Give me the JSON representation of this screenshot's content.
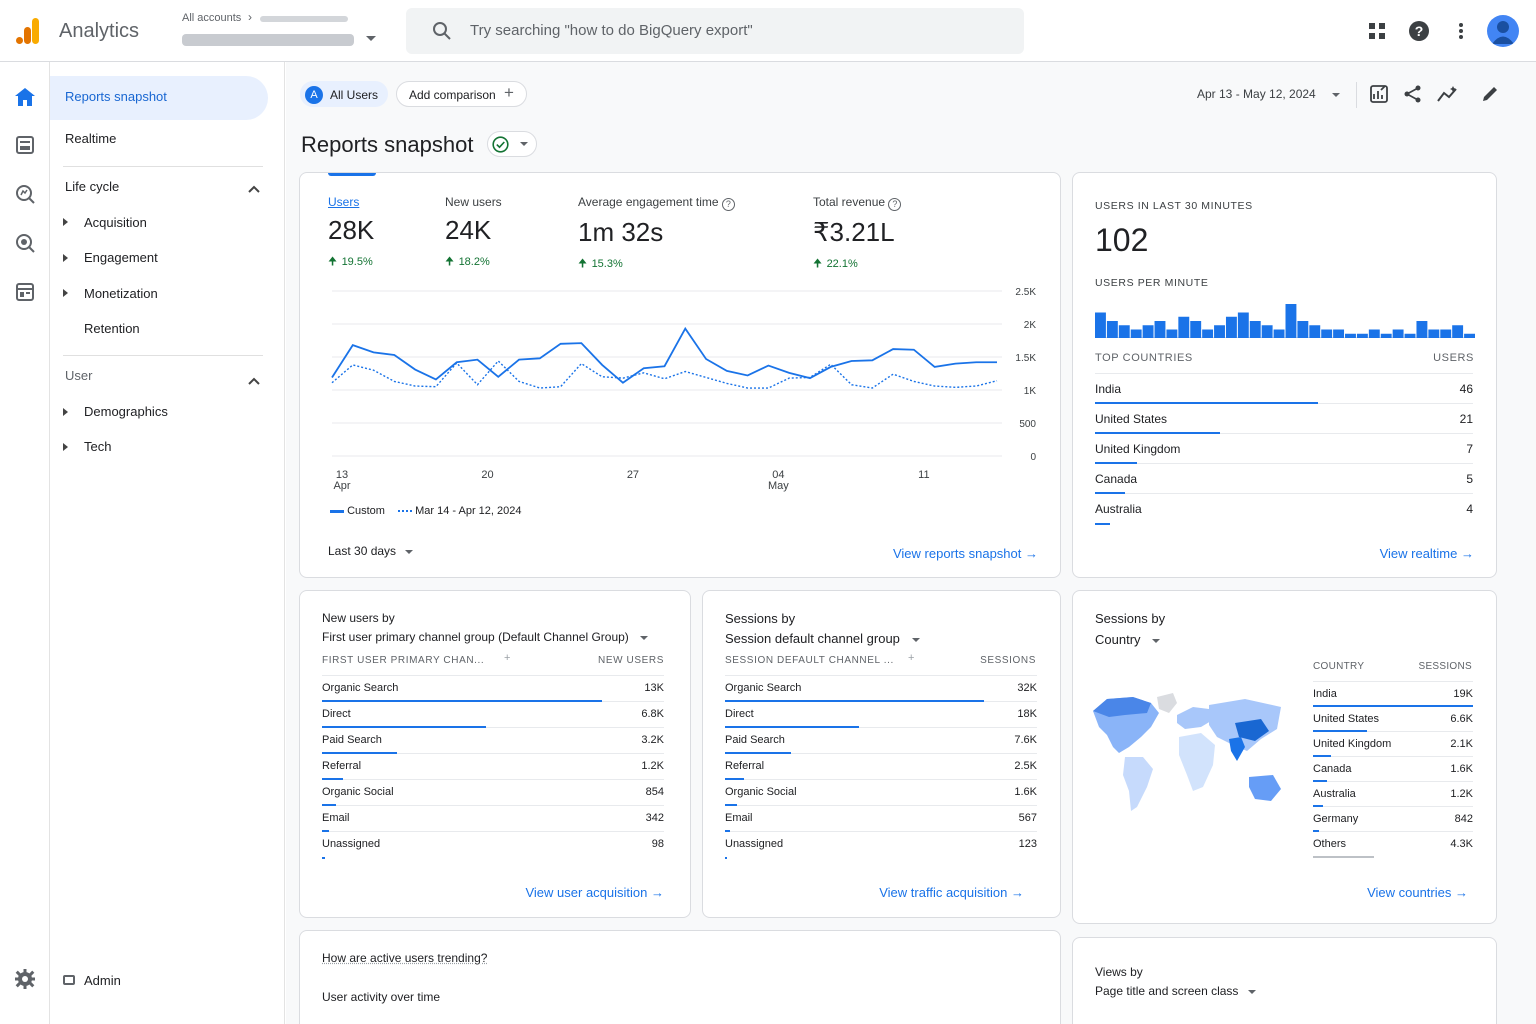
{
  "app": {
    "name": "Analytics",
    "accounts_label": "All accounts"
  },
  "search": {
    "placeholder": "Try searching \"how to do BigQuery export\""
  },
  "sidenav": {
    "reports_snapshot": "Reports snapshot",
    "realtime": "Realtime",
    "lifecycle": "Life cycle",
    "acquisition": "Acquisition",
    "engagement": "Engagement",
    "monetization": "Monetization",
    "retention": "Retention",
    "user": "User",
    "demographics": "Demographics",
    "tech": "Tech",
    "admin": "Admin"
  },
  "toolbar": {
    "all_users_badge": "A",
    "all_users": "All Users",
    "add_comparison": "Add comparison",
    "date_range": "Apr 13 - May 12, 2024"
  },
  "page": {
    "title": "Reports snapshot"
  },
  "overview": {
    "metrics": [
      {
        "label": "Users",
        "value": "28K",
        "change": "19.5%"
      },
      {
        "label": "New users",
        "value": "24K",
        "change": "18.2%"
      },
      {
        "label": "Average engagement time",
        "value": "1m 32s",
        "change": "15.3%"
      },
      {
        "label": "Total revenue",
        "value": "₹3.21L",
        "change": "22.1%"
      }
    ],
    "legend_custom": "Custom",
    "legend_prev": "Mar 14 - Apr 12, 2024",
    "period": "Last 30 days",
    "view_link": "View reports snapshot"
  },
  "chart_data": {
    "type": "line",
    "x_tick_labels": [
      {
        "day": "13",
        "month": "Apr"
      },
      {
        "day": "20",
        "month": ""
      },
      {
        "day": "27",
        "month": ""
      },
      {
        "day": "04",
        "month": "May"
      },
      {
        "day": "11",
        "month": ""
      }
    ],
    "y_ticks": [
      "2.5K",
      "2K",
      "1.5K",
      "1K",
      "500",
      "0"
    ],
    "ylim": [
      0,
      2500
    ],
    "series": [
      {
        "name": "Custom",
        "values": [
          1190,
          1680,
          1570,
          1530,
          1310,
          1160,
          1420,
          1460,
          1200,
          1460,
          1480,
          1700,
          1710,
          1380,
          1110,
          1330,
          1360,
          1930,
          1470,
          1290,
          1220,
          1370,
          1260,
          1180,
          1350,
          1440,
          1450,
          1620,
          1610,
          1350,
          1400,
          1420,
          1420
        ]
      },
      {
        "name": "Mar 14 - Apr 12, 2024",
        "values": [
          1110,
          1380,
          1300,
          1130,
          1060,
          1050,
          1410,
          1080,
          1440,
          1130,
          1030,
          1050,
          1400,
          1200,
          1180,
          1260,
          1170,
          1280,
          1190,
          1100,
          1030,
          1030,
          1180,
          1190,
          1390,
          1080,
          1030,
          1240,
          1130,
          1060,
          1040,
          1060,
          1140
        ]
      }
    ]
  },
  "realtime": {
    "title": "USERS IN LAST 30 MINUTES",
    "value": "102",
    "per_minute_label": "USERS PER MINUTE",
    "per_minute": [
      6,
      4,
      3,
      2,
      3,
      4,
      2,
      5,
      4,
      2,
      3,
      5,
      6,
      4,
      3,
      2,
      8,
      4,
      3,
      2,
      2,
      1,
      1,
      2,
      1,
      2,
      1,
      4,
      2,
      2,
      3,
      1
    ],
    "countries_header": "TOP COUNTRIES",
    "users_header": "USERS",
    "countries": [
      {
        "name": "India",
        "value": "46",
        "pct": 0.59
      },
      {
        "name": "United States",
        "value": "21",
        "pct": 0.33
      },
      {
        "name": "United Kingdom",
        "value": "7",
        "pct": 0.11
      },
      {
        "name": "Canada",
        "value": "5",
        "pct": 0.08
      },
      {
        "name": "Australia",
        "value": "4",
        "pct": 0.04
      }
    ],
    "view_link": "View realtime"
  },
  "new_users": {
    "title": "New users by",
    "selector": "First user primary channel group (Default Channel Group)",
    "col1": "FIRST USER PRIMARY CHAN...",
    "col2": "NEW USERS",
    "rows": [
      {
        "label": "Organic Search",
        "value": "13K",
        "pct": 0.82
      },
      {
        "label": "Direct",
        "value": "6.8K",
        "pct": 0.48
      },
      {
        "label": "Paid Search",
        "value": "3.2K",
        "pct": 0.22
      },
      {
        "label": "Referral",
        "value": "1.2K",
        "pct": 0.06
      },
      {
        "label": "Organic Social",
        "value": "854",
        "pct": 0.04
      },
      {
        "label": "Email",
        "value": "342",
        "pct": 0.02
      },
      {
        "label": "Unassigned",
        "value": "98",
        "pct": 0.01
      }
    ],
    "view_link": "View user acquisition"
  },
  "sessions_channel": {
    "title": "Sessions by",
    "selector": "Session default channel group",
    "col1": "SESSION DEFAULT CHANNEL ...",
    "col2": "SESSIONS",
    "rows": [
      {
        "label": "Organic Search",
        "value": "32K",
        "pct": 0.83
      },
      {
        "label": "Direct",
        "value": "18K",
        "pct": 0.43
      },
      {
        "label": "Paid Search",
        "value": "7.6K",
        "pct": 0.21
      },
      {
        "label": "Referral",
        "value": "2.5K",
        "pct": 0.06
      },
      {
        "label": "Organic Social",
        "value": "1.6K",
        "pct": 0.04
      },
      {
        "label": "Email",
        "value": "567",
        "pct": 0.015
      },
      {
        "label": "Unassigned",
        "value": "123",
        "pct": 0.005
      }
    ],
    "view_link": "View traffic acquisition"
  },
  "sessions_country": {
    "title": "Sessions by",
    "selector": "Country",
    "col1": "COUNTRY",
    "col2": "SESSIONS",
    "rows": [
      {
        "label": "India",
        "value": "19K",
        "pct": 1.0
      },
      {
        "label": "United States",
        "value": "6.6K",
        "pct": 0.34
      },
      {
        "label": "United Kingdom",
        "value": "2.1K",
        "pct": 0.11
      },
      {
        "label": "Canada",
        "value": "1.6K",
        "pct": 0.09
      },
      {
        "label": "Australia",
        "value": "1.2K",
        "pct": 0.06
      },
      {
        "label": "Germany",
        "value": "842",
        "pct": 0.04
      },
      {
        "label": "Others",
        "value": "4.3K",
        "pct": 0.38
      }
    ],
    "view_link": "View countries"
  },
  "trend": {
    "title": "How are active users trending?",
    "subtitle": "User activity over time"
  },
  "views": {
    "title": "Views by",
    "selector": "Page title and screen class"
  },
  "colors": {
    "primary": "#1a73e8",
    "positive": "#137333",
    "logo_orange": "#f9ab00",
    "logo_dark": "#e37400"
  }
}
